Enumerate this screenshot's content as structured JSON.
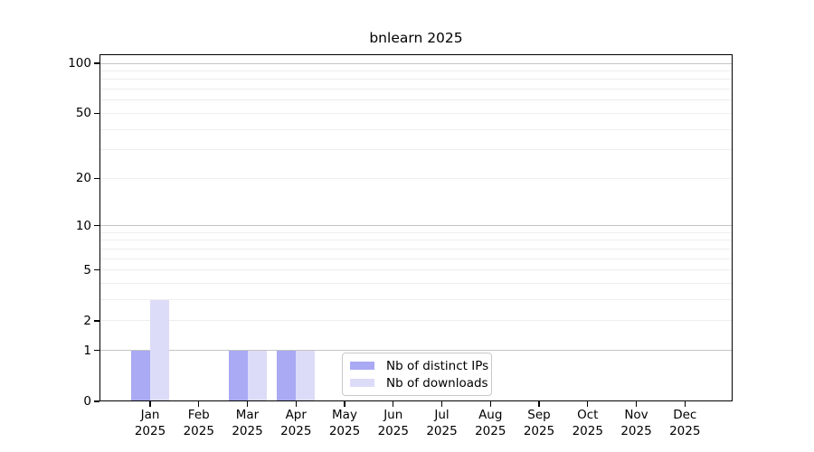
{
  "chart_data": {
    "type": "bar",
    "title": "bnlearn 2025",
    "y_scale": "log1p",
    "ylim": [
      0,
      113
    ],
    "xlabel": "",
    "ylabel": "",
    "categories": [
      "Jan 2025",
      "Feb 2025",
      "Mar 2025",
      "Apr 2025",
      "May 2025",
      "Jun 2025",
      "Jul 2025",
      "Aug 2025",
      "Sep 2025",
      "Oct 2025",
      "Nov 2025",
      "Dec 2025"
    ],
    "series": [
      {
        "name": "Nb of distinct IPs",
        "color": "#a9a9f4",
        "values": [
          1,
          0,
          1,
          1,
          0,
          0,
          0,
          0,
          0,
          0,
          0,
          0
        ]
      },
      {
        "name": "Nb of downloads",
        "color": "#dcdcf8",
        "values": [
          3,
          0,
          1,
          1,
          0,
          0,
          0,
          0,
          0,
          0,
          0,
          0
        ]
      }
    ],
    "y_ticks": [
      0,
      1,
      2,
      5,
      10,
      20,
      50,
      100
    ],
    "grid": {
      "major_values": [
        1,
        10,
        100
      ],
      "minor_values": [
        2,
        3,
        4,
        5,
        6,
        7,
        8,
        9,
        20,
        30,
        40,
        50,
        60,
        70,
        80,
        90
      ],
      "major_color": "#c4c4c4",
      "minor_color": "#ededed"
    },
    "legend_position": "inside-bottom-center"
  }
}
